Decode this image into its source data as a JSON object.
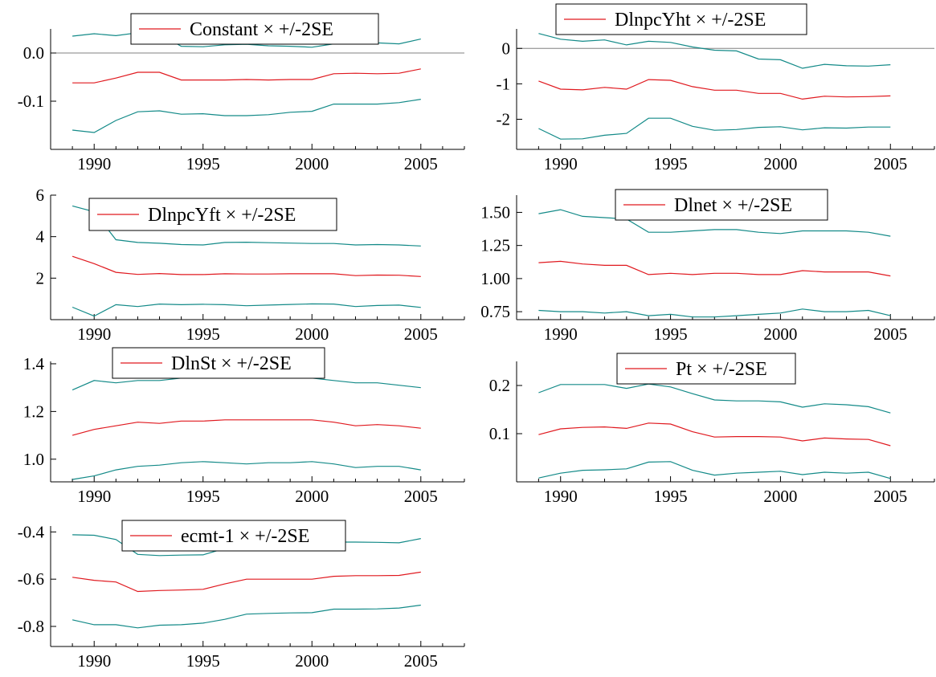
{
  "colors": {
    "estimate": "#e0191f",
    "band": "#138a88",
    "axis": "#000000",
    "zero_line": "#808080"
  },
  "chart_data": [
    {
      "type": "line",
      "legend": {
        "estimate": "Constant",
        "band": "× +/-2SE",
        "placement": "top-center"
      },
      "x": [
        1989,
        1990,
        1991,
        1992,
        1993,
        1994,
        1995,
        1996,
        1997,
        1998,
        1999,
        2000,
        2001,
        2002,
        2003,
        2004,
        2005
      ],
      "xlim": [
        1988,
        2007
      ],
      "xticks": [
        1990,
        1995,
        2000,
        2005
      ],
      "ylim": [
        -0.2,
        0.05
      ],
      "yticks": [
        0.0,
        -0.1
      ],
      "ytick_labels": [
        "0.0",
        "-0.1"
      ],
      "zero_line": true,
      "series": [
        {
          "role": "upper",
          "values": [
            0.035,
            0.04,
            0.036,
            0.042,
            0.04,
            0.014,
            0.013,
            0.017,
            0.018,
            0.015,
            0.014,
            0.012,
            0.019,
            0.022,
            0.021,
            0.019,
            0.029
          ]
        },
        {
          "role": "estimate",
          "values": [
            -0.062,
            -0.062,
            -0.052,
            -0.04,
            -0.04,
            -0.056,
            -0.056,
            -0.056,
            -0.055,
            -0.056,
            -0.055,
            -0.055,
            -0.043,
            -0.042,
            -0.043,
            -0.042,
            -0.033
          ]
        },
        {
          "role": "lower",
          "values": [
            -0.16,
            -0.165,
            -0.14,
            -0.122,
            -0.12,
            -0.127,
            -0.126,
            -0.13,
            -0.13,
            -0.128,
            -0.123,
            -0.121,
            -0.106,
            -0.106,
            -0.106,
            -0.103,
            -0.096
          ]
        }
      ]
    },
    {
      "type": "line",
      "legend": {
        "estimate": "DlnpcYht",
        "band": "× +/-2SE",
        "placement": "top-center"
      },
      "x": [
        1989,
        1990,
        1991,
        1992,
        1993,
        1994,
        1995,
        1996,
        1997,
        1998,
        1999,
        2000,
        2001,
        2002,
        2003,
        2004,
        2005
      ],
      "xlim": [
        1988,
        2007
      ],
      "xticks": [
        1990,
        1995,
        2000,
        2005
      ],
      "ylim": [
        -2.85,
        0.55
      ],
      "yticks": [
        0,
        -1,
        -2
      ],
      "ytick_labels": [
        "0",
        "-1",
        "-2"
      ],
      "zero_line": true,
      "series": [
        {
          "role": "upper",
          "values": [
            0.42,
            0.26,
            0.2,
            0.24,
            0.1,
            0.2,
            0.17,
            0.04,
            -0.05,
            -0.07,
            -0.3,
            -0.32,
            -0.56,
            -0.45,
            -0.49,
            -0.5,
            -0.46
          ]
        },
        {
          "role": "estimate",
          "values": [
            -0.92,
            -1.15,
            -1.17,
            -1.1,
            -1.15,
            -0.88,
            -0.9,
            -1.08,
            -1.18,
            -1.18,
            -1.27,
            -1.27,
            -1.43,
            -1.35,
            -1.37,
            -1.36,
            -1.34
          ]
        },
        {
          "role": "lower",
          "values": [
            -2.26,
            -2.56,
            -2.55,
            -2.45,
            -2.4,
            -1.97,
            -1.97,
            -2.2,
            -2.31,
            -2.29,
            -2.23,
            -2.21,
            -2.3,
            -2.24,
            -2.25,
            -2.22,
            -2.22
          ]
        }
      ]
    },
    {
      "type": "line",
      "legend": {
        "estimate": "DlnpcYft",
        "band": "× +/-2SE",
        "placement": "top-center"
      },
      "x": [
        1989,
        1990,
        1991,
        1992,
        1993,
        1994,
        1995,
        1996,
        1997,
        1998,
        1999,
        2000,
        2001,
        2002,
        2003,
        2004,
        2005
      ],
      "xlim": [
        1988,
        2007
      ],
      "xticks": [
        1990,
        1995,
        2000,
        2005
      ],
      "ylim": [
        0.0,
        6.0
      ],
      "yticks": [
        2,
        4,
        6
      ],
      "ytick_labels": [
        "2",
        "4",
        "6"
      ],
      "zero_line": false,
      "series": [
        {
          "role": "upper",
          "values": [
            5.48,
            5.2,
            3.85,
            3.72,
            3.68,
            3.62,
            3.6,
            3.72,
            3.73,
            3.71,
            3.69,
            3.67,
            3.67,
            3.6,
            3.62,
            3.6,
            3.55
          ]
        },
        {
          "role": "estimate",
          "values": [
            3.05,
            2.7,
            2.28,
            2.18,
            2.22,
            2.17,
            2.17,
            2.21,
            2.2,
            2.2,
            2.21,
            2.21,
            2.21,
            2.12,
            2.15,
            2.14,
            2.08
          ]
        },
        {
          "role": "lower",
          "values": [
            0.6,
            0.17,
            0.72,
            0.63,
            0.75,
            0.72,
            0.74,
            0.72,
            0.67,
            0.7,
            0.73,
            0.76,
            0.75,
            0.63,
            0.68,
            0.7,
            0.59
          ]
        }
      ]
    },
    {
      "type": "line",
      "legend": {
        "estimate": "Dlnet",
        "band": "× +/-2SE",
        "placement": "top-center"
      },
      "x": [
        1989,
        1990,
        1991,
        1992,
        1993,
        1994,
        1995,
        1996,
        1997,
        1998,
        1999,
        2000,
        2001,
        2002,
        2003,
        2004,
        2005
      ],
      "xlim": [
        1988,
        2007
      ],
      "xticks": [
        1990,
        1995,
        2000,
        2005
      ],
      "ylim": [
        0.69,
        1.63
      ],
      "yticks": [
        0.75,
        1.0,
        1.25,
        1.5
      ],
      "ytick_labels": [
        "0.75",
        "1.00",
        "1.25",
        "1.50"
      ],
      "zero_line": false,
      "series": [
        {
          "role": "upper",
          "values": [
            1.49,
            1.52,
            1.47,
            1.46,
            1.45,
            1.35,
            1.35,
            1.36,
            1.37,
            1.37,
            1.35,
            1.34,
            1.36,
            1.36,
            1.36,
            1.35,
            1.32
          ]
        },
        {
          "role": "estimate",
          "values": [
            1.12,
            1.13,
            1.11,
            1.1,
            1.1,
            1.03,
            1.04,
            1.03,
            1.04,
            1.04,
            1.03,
            1.03,
            1.06,
            1.05,
            1.05,
            1.05,
            1.02
          ]
        },
        {
          "role": "lower",
          "values": [
            0.76,
            0.75,
            0.75,
            0.74,
            0.75,
            0.72,
            0.73,
            0.71,
            0.71,
            0.72,
            0.73,
            0.74,
            0.77,
            0.75,
            0.75,
            0.76,
            0.72
          ]
        }
      ]
    },
    {
      "type": "line",
      "legend": {
        "estimate": "DlnSt",
        "band": "× +/-2SE",
        "placement": "top-center"
      },
      "x": [
        1989,
        1990,
        1991,
        1992,
        1993,
        1994,
        1995,
        1996,
        1997,
        1998,
        1999,
        2000,
        2001,
        2002,
        2003,
        2004,
        2005
      ],
      "xlim": [
        1988,
        2007
      ],
      "xticks": [
        1990,
        1995,
        2000,
        2005
      ],
      "ylim": [
        0.905,
        1.41
      ],
      "yticks": [
        1.0,
        1.2,
        1.4
      ],
      "ytick_labels": [
        "1.0",
        "1.2",
        "1.4"
      ],
      "zero_line": false,
      "series": [
        {
          "role": "upper",
          "values": [
            1.29,
            1.33,
            1.32,
            1.33,
            1.33,
            1.34,
            1.34,
            1.35,
            1.35,
            1.34,
            1.34,
            1.34,
            1.33,
            1.32,
            1.32,
            1.31,
            1.3
          ]
        },
        {
          "role": "estimate",
          "values": [
            1.1,
            1.125,
            1.14,
            1.155,
            1.15,
            1.16,
            1.16,
            1.165,
            1.165,
            1.165,
            1.165,
            1.165,
            1.155,
            1.14,
            1.145,
            1.14,
            1.13
          ]
        },
        {
          "role": "lower",
          "values": [
            0.915,
            0.93,
            0.955,
            0.97,
            0.975,
            0.985,
            0.99,
            0.985,
            0.98,
            0.985,
            0.985,
            0.99,
            0.98,
            0.965,
            0.97,
            0.97,
            0.955
          ]
        }
      ]
    },
    {
      "type": "line",
      "legend": {
        "estimate": "Pt",
        "band": "× +/-2SE",
        "placement": "top-right"
      },
      "x": [
        1989,
        1990,
        1991,
        1992,
        1993,
        1994,
        1995,
        1996,
        1997,
        1998,
        1999,
        2000,
        2001,
        2002,
        2003,
        2004,
        2005
      ],
      "xlim": [
        1988,
        2007
      ],
      "xticks": [
        1990,
        1995,
        2000,
        2005
      ],
      "ylim": [
        0.0,
        0.25
      ],
      "yticks": [
        0.1,
        0.2
      ],
      "ytick_labels": [
        "0.1",
        "0.2"
      ],
      "zero_line": false,
      "series": [
        {
          "role": "upper",
          "values": [
            0.185,
            0.202,
            0.202,
            0.202,
            0.194,
            0.203,
            0.197,
            0.183,
            0.17,
            0.168,
            0.168,
            0.166,
            0.155,
            0.162,
            0.16,
            0.156,
            0.143
          ]
        },
        {
          "role": "estimate",
          "values": [
            0.098,
            0.11,
            0.113,
            0.114,
            0.111,
            0.122,
            0.12,
            0.104,
            0.093,
            0.094,
            0.094,
            0.093,
            0.085,
            0.091,
            0.089,
            0.088,
            0.075
          ]
        },
        {
          "role": "lower",
          "values": [
            0.008,
            0.018,
            0.024,
            0.025,
            0.027,
            0.041,
            0.042,
            0.024,
            0.014,
            0.018,
            0.02,
            0.022,
            0.015,
            0.02,
            0.018,
            0.02,
            0.007
          ]
        }
      ]
    },
    {
      "type": "line",
      "legend": {
        "estimate": "ecmt-1",
        "band": "× +/-2SE",
        "placement": "top-center"
      },
      "x": [
        1989,
        1990,
        1991,
        1992,
        1993,
        1994,
        1995,
        1996,
        1997,
        1998,
        1999,
        2000,
        2001,
        2002,
        2003,
        2004,
        2005
      ],
      "xlim": [
        1988,
        2007
      ],
      "xticks": [
        1990,
        1995,
        2000,
        2005
      ],
      "ylim": [
        -0.885,
        -0.375
      ],
      "yticks": [
        -0.4,
        -0.6,
        -0.8
      ],
      "ytick_labels": [
        "-0.4",
        "-0.6",
        "-0.8"
      ],
      "zero_line": false,
      "series": [
        {
          "role": "upper",
          "values": [
            -0.412,
            -0.414,
            -0.432,
            -0.495,
            -0.5,
            -0.498,
            -0.497,
            -0.47,
            -0.453,
            -0.453,
            -0.455,
            -0.455,
            -0.443,
            -0.443,
            -0.444,
            -0.446,
            -0.428
          ]
        },
        {
          "role": "estimate",
          "values": [
            -0.592,
            -0.605,
            -0.612,
            -0.652,
            -0.648,
            -0.646,
            -0.643,
            -0.62,
            -0.6,
            -0.6,
            -0.6,
            -0.6,
            -0.588,
            -0.585,
            -0.585,
            -0.584,
            -0.57
          ]
        },
        {
          "role": "lower",
          "values": [
            -0.772,
            -0.793,
            -0.793,
            -0.806,
            -0.795,
            -0.793,
            -0.786,
            -0.77,
            -0.748,
            -0.745,
            -0.743,
            -0.742,
            -0.727,
            -0.727,
            -0.726,
            -0.722,
            -0.71
          ]
        }
      ]
    }
  ]
}
